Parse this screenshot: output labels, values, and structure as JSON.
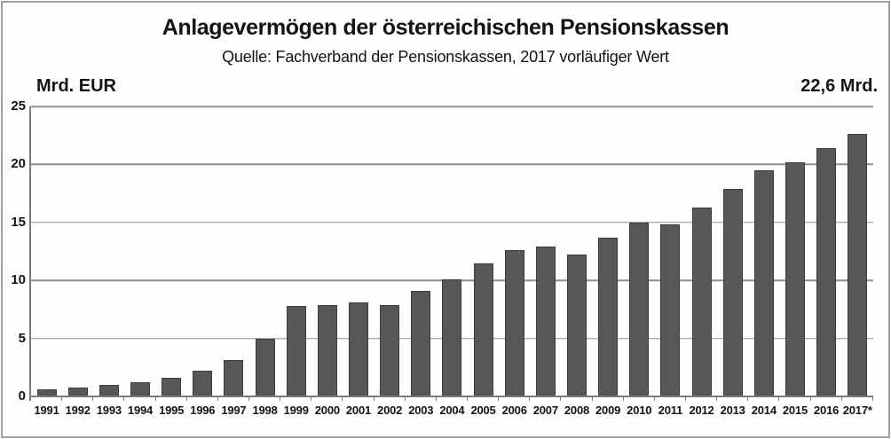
{
  "chart_data": {
    "type": "bar",
    "title": "Anlagevermögen der österreichischen Pensionskassen",
    "subtitle": "Quelle: Fachverband der Pensionskassen, 2017 vorläufiger Wert",
    "ylabel": "Mrd. EUR",
    "annotation": "22,6 Mrd.",
    "ylim": [
      0,
      25
    ],
    "yticks": [
      0,
      5,
      10,
      15,
      20,
      25
    ],
    "grid": true,
    "legend": "none",
    "categories": [
      "1991",
      "1992",
      "1993",
      "1994",
      "1995",
      "1996",
      "1997",
      "1998",
      "1999",
      "2000",
      "2001",
      "2002",
      "2003",
      "2004",
      "2005",
      "2006",
      "2007",
      "2008",
      "2009",
      "2010",
      "2011",
      "2012",
      "2013",
      "2014",
      "2015",
      "2016",
      "2017*"
    ],
    "values": [
      0.6,
      0.8,
      1.0,
      1.2,
      1.6,
      2.2,
      3.1,
      5.0,
      7.8,
      7.9,
      8.1,
      7.9,
      9.1,
      10.1,
      11.5,
      12.6,
      12.9,
      12.2,
      13.7,
      15.0,
      14.8,
      16.3,
      17.9,
      19.5,
      20.2,
      21.4,
      22.6
    ]
  },
  "colors": {
    "bar": "#575757",
    "bar_border": "#3d3d3d",
    "gridline": "#8f8f8f",
    "axis": "#7a7a7a",
    "frame": "#9f9f9f",
    "text": "#141414"
  }
}
